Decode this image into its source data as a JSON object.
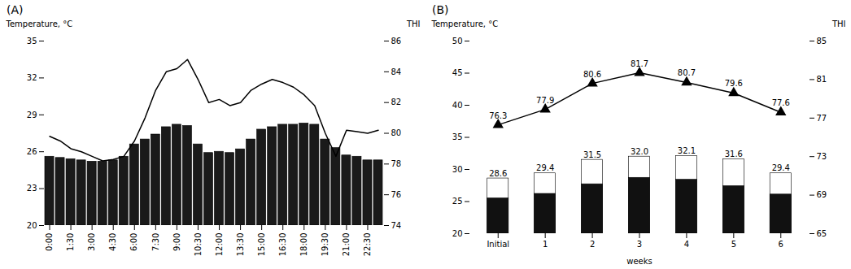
{
  "chart_data": [
    {
      "type": "bar",
      "title": "(A)",
      "categories": [
        "0:00",
        null,
        "1:30",
        null,
        "3:00",
        null,
        "4:30",
        null,
        "6:00",
        null,
        "7:30",
        null,
        "9:00",
        null,
        "10:30",
        null,
        "12:00",
        null,
        "13:30",
        null,
        "15:00",
        null,
        "16:30",
        null,
        "18:00",
        null,
        "19:30",
        null,
        "21:00",
        null,
        "22:30",
        null
      ],
      "ylabel": "Temperature, °C",
      "y2label": "THI",
      "ylim": [
        20,
        35
      ],
      "yticks": [
        20,
        23,
        26,
        29,
        32,
        35
      ],
      "y2lim": [
        74,
        86
      ],
      "y2ticks": [
        74,
        76,
        78,
        80,
        82,
        84,
        86
      ],
      "series": [
        {
          "type": "bar",
          "color": "#1a1a1a",
          "values": [
            25.6,
            25.5,
            25.4,
            25.3,
            25.2,
            25.2,
            25.3,
            25.6,
            26.6,
            27.0,
            27.4,
            28.0,
            28.2,
            28.1,
            26.6,
            25.9,
            26.0,
            25.9,
            26.2,
            27.0,
            27.8,
            28.0,
            28.2,
            28.2,
            28.3,
            28.2,
            27.0,
            26.3,
            25.7,
            25.6,
            25.3,
            25.3
          ]
        },
        {
          "type": "line",
          "axis": "y2",
          "color": "#000000",
          "values": [
            79.8,
            79.5,
            79.0,
            78.8,
            78.5,
            78.2,
            78.3,
            78.5,
            79.5,
            81.0,
            82.8,
            84.0,
            84.2,
            84.8,
            83.5,
            82.0,
            82.2,
            81.8,
            82.0,
            82.8,
            83.2,
            83.5,
            83.3,
            83.0,
            82.5,
            81.8,
            80.0,
            78.5,
            80.2,
            80.1,
            80.0,
            80.2
          ]
        }
      ]
    },
    {
      "type": "bar",
      "title": "(B)",
      "categories": [
        "Initial",
        "1",
        "2",
        "3",
        "4",
        "5",
        "6"
      ],
      "xlabel": "weeks",
      "ylabel": "Temperature, °C",
      "y2label": "THI",
      "ylim": [
        20,
        50
      ],
      "yticks": [
        20,
        25,
        30,
        35,
        40,
        45,
        50
      ],
      "y2lim": [
        65,
        85
      ],
      "y2ticks": [
        65,
        69,
        73,
        77,
        81,
        85
      ],
      "stacked": false,
      "data_labels": true,
      "series": [
        {
          "type": "bar",
          "color": "#111111",
          "values": [
            25.5,
            26.2,
            27.7,
            28.7,
            28.4,
            27.4,
            26.1
          ]
        },
        {
          "type": "bar",
          "color": "#ffffff",
          "values": [
            28.6,
            29.4,
            31.5,
            32.0,
            32.1,
            31.6,
            29.4
          ],
          "value_labels": [
            "28.6",
            "29.4",
            "31.5",
            "32.0",
            "32.1",
            "31.6",
            "29.4"
          ]
        },
        {
          "type": "line",
          "axis": "y2",
          "color": "#000000",
          "marker": "triangle",
          "values": [
            76.3,
            77.9,
            80.6,
            81.7,
            80.7,
            79.6,
            77.6
          ],
          "value_labels": [
            "76.3",
            "77.9",
            "80.6",
            "81.7",
            "80.7",
            "79.6",
            "77.6"
          ]
        }
      ]
    }
  ]
}
